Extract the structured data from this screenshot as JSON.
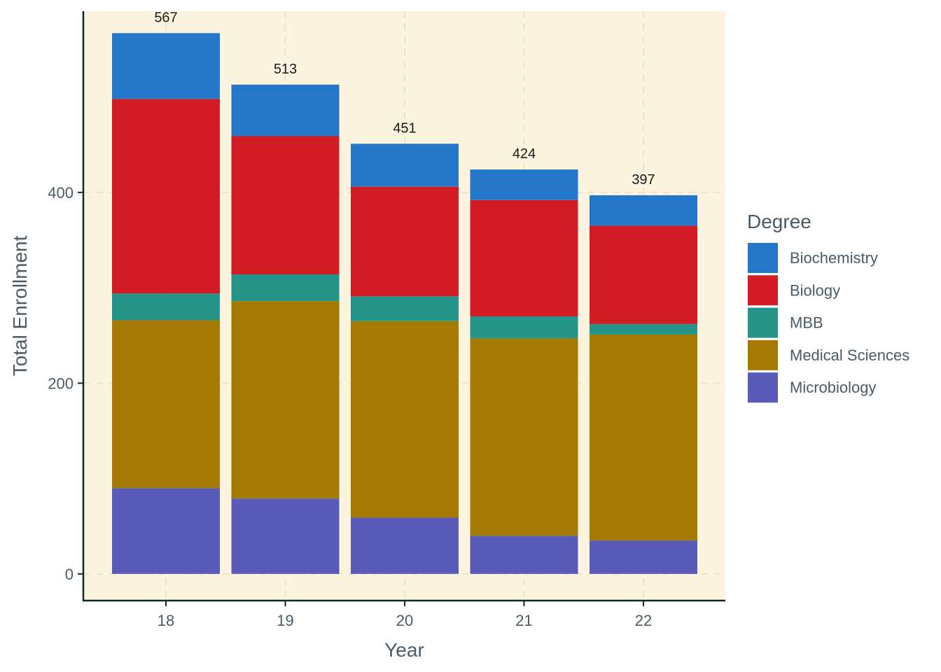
{
  "chart_data": {
    "type": "bar",
    "stacked": true,
    "title": "",
    "xlabel": "Year",
    "ylabel": "Total Enrollment",
    "categories": [
      "18",
      "19",
      "20",
      "21",
      "22"
    ],
    "ylim": [
      -28,
      590
    ],
    "yticks": [
      0,
      200,
      400
    ],
    "grid": true,
    "legend": {
      "title": "Degree",
      "position": "right"
    },
    "series": [
      {
        "name": "Microbiology",
        "color": "#5a5ab8",
        "values": [
          90,
          79,
          59,
          40,
          35
        ]
      },
      {
        "name": "Medical Sciences",
        "color": "#a57a03",
        "values": [
          176,
          207,
          206,
          207,
          216
        ]
      },
      {
        "name": "MBB",
        "color": "#239487",
        "values": [
          28,
          28,
          26,
          23,
          11
        ]
      },
      {
        "name": "Biology",
        "color": "#d21c24",
        "values": [
          204,
          145,
          115,
          122,
          103
        ]
      },
      {
        "name": "Biochemistry",
        "color": "#2476c8",
        "values": [
          69,
          54,
          45,
          32,
          32
        ]
      }
    ],
    "totals": [
      567,
      513,
      451,
      424,
      397
    ],
    "legend_order": [
      "Biochemistry",
      "Biology",
      "MBB",
      "Medical Sciences",
      "Microbiology"
    ],
    "colors": {
      "panel": "#fcf4de",
      "grid": "#ede3c8",
      "axis": "#0f2a25",
      "text": "#4a5b66"
    }
  }
}
